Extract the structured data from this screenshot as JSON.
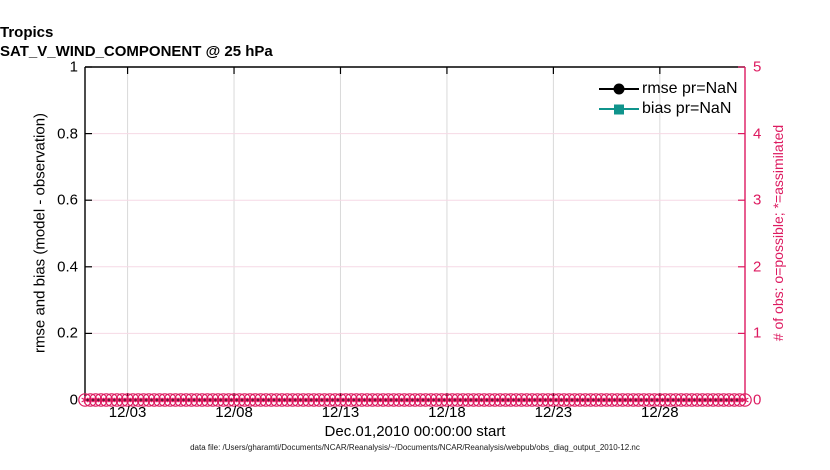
{
  "title": {
    "line1": "Tropics",
    "line2": "SAT_V_WIND_COMPONENT @ 25 hPa"
  },
  "axes": {
    "left": {
      "label": "rmse and bias (model - observation)",
      "ticks": [
        "0",
        "0.2",
        "0.4",
        "0.6",
        "0.8",
        "1"
      ],
      "range": [
        0,
        1
      ],
      "color": "#000000"
    },
    "right": {
      "label": "# of obs: o=possible; *=assimilated",
      "ticks": [
        "0",
        "1",
        "2",
        "3",
        "4",
        "5"
      ],
      "range": [
        0,
        5
      ],
      "color": "#DD1A60"
    },
    "x": {
      "label": "Dec.01,2010 00:00:00 start",
      "ticks": [
        "12/03",
        "12/08",
        "12/13",
        "12/18",
        "12/23",
        "12/28"
      ],
      "tick_days": [
        2,
        7,
        12,
        17,
        22,
        27
      ],
      "span_days": 31
    }
  },
  "legend": {
    "items": [
      {
        "label": "rmse pr=NaN",
        "color": "#000000",
        "marker": "circle"
      },
      {
        "label": "bias pr=NaN",
        "color": "#10948C",
        "marker": "square"
      }
    ]
  },
  "footer": "data file: /Users/gharamti/Documents/NCAR/Reanalysis/~/Documents/NCAR/Reanalysis/webpub/obs_diag_output_2010-12.nc",
  "colors": {
    "grid_x": "#D9D9D9",
    "grid_y": "#F6D9E5",
    "axis_black": "#000000",
    "axis_pink": "#DD1A60"
  },
  "chart_data": {
    "type": "line",
    "title": "Tropics",
    "subtitle": "SAT_V_WIND_COMPONENT @ 25 hPa",
    "xlabel": "Dec.01,2010 00:00:00 start",
    "ylabel": "rmse and bias (model - observation)",
    "ylabel_right": "# of obs: o=possible; *=assimilated",
    "x_tick_labels": [
      "12/03",
      "12/08",
      "12/13",
      "12/18",
      "12/23",
      "12/28"
    ],
    "x_tick_days_from_start": [
      2,
      7,
      12,
      17,
      22,
      27
    ],
    "xlim_days": [
      0,
      31
    ],
    "ylim_left": [
      0,
      1
    ],
    "ylim_right": [
      0,
      5
    ],
    "grid": true,
    "legend_position": "upper-right-inside",
    "series": [
      {
        "name": "rmse pr=NaN",
        "axis": "left",
        "marker": "circle",
        "color": "#000000",
        "values": [],
        "note": "all NaN - no curve drawn"
      },
      {
        "name": "bias pr=NaN",
        "axis": "left",
        "marker": "square",
        "color": "#10948C",
        "values": [],
        "note": "all NaN - no curve drawn"
      },
      {
        "name": "possible observations (o)",
        "axis": "right",
        "marker": "o",
        "color": "#DD1A60",
        "timestep_days": 0.25,
        "n_points": 125,
        "constant_value": 0
      },
      {
        "name": "assimilated observations (*)",
        "axis": "right",
        "marker": "*",
        "color": "#DD1A60",
        "timestep_days": 0.25,
        "n_points": 125,
        "constant_value": 0
      }
    ]
  }
}
